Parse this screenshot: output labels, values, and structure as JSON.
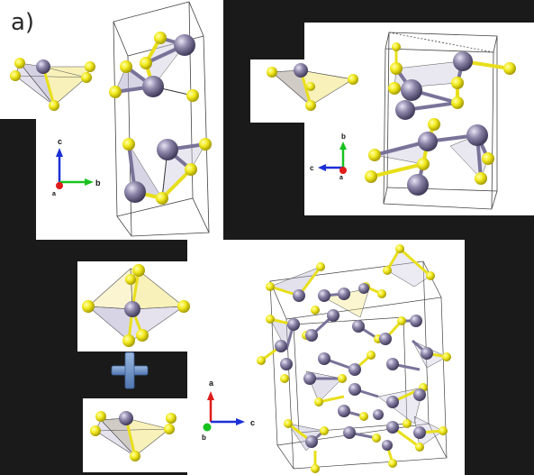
{
  "figure": {
    "panel_label": "a)",
    "palette": {
      "sulfur": "#f2ea1e",
      "metal": "#8c85a8",
      "bond_yellow": "#e8df1c",
      "bond_metal": "#7a7399",
      "cell": "#444444",
      "axis_a": "#e01b1b",
      "axis_b": "#18c21e",
      "axis_c": "#1c2fd6",
      "plus": "#6f94c8"
    },
    "axes_top_left": {
      "vertical": "c",
      "horizontal": "b",
      "origin": "a"
    },
    "axes_top_right": {
      "vertical": "b",
      "horizontal": "c",
      "origin": "a"
    },
    "axes_bottom": {
      "vertical": "a",
      "horizontal": "c",
      "origin": "b"
    },
    "operator_symbol": "+"
  }
}
